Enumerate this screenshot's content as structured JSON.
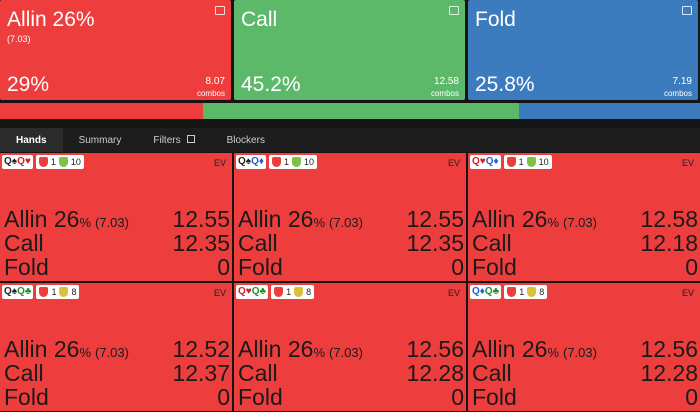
{
  "actions": [
    {
      "name": "Allin 26%",
      "size": "(7.03)",
      "frequency": "29%",
      "combos": 8.07,
      "combos_label": "combos",
      "color": "#ee3d3d"
    },
    {
      "name": "Call",
      "frequency": "45.2%",
      "combos": 12.58,
      "combos_label": "combos",
      "color": "#5cb96a"
    },
    {
      "name": "Fold",
      "frequency": "25.8%",
      "combos": 7.19,
      "combos_label": "combos",
      "color": "#3d7bbf"
    }
  ],
  "tabs": [
    "Hands",
    "Summary",
    "Filters",
    "Blockers"
  ],
  "hands": [
    {
      "cards": [
        "Q♠",
        "Q♥"
      ],
      "blockers": [
        {
          "value": 1,
          "color": "#ee3d3d"
        },
        {
          "value": 10,
          "color": "#7cc243"
        }
      ],
      "ev_label": "EV",
      "rows": [
        {
          "action": "Allin 26",
          "unit": "%",
          "size": "(7.03)",
          "ev": 12.55
        },
        {
          "action": "Call",
          "ev": 12.35
        },
        {
          "action": "Fold",
          "ev": 0
        }
      ]
    },
    {
      "cards": [
        "Q♠",
        "Q♦"
      ],
      "blockers": [
        {
          "value": 1,
          "color": "#ee3d3d"
        },
        {
          "value": 10,
          "color": "#7cc243"
        }
      ],
      "ev_label": "EV",
      "rows": [
        {
          "action": "Allin 26",
          "unit": "%",
          "size": "(7.03)",
          "ev": 12.55
        },
        {
          "action": "Call",
          "ev": 12.35
        },
        {
          "action": "Fold",
          "ev": 0
        }
      ]
    },
    {
      "cards": [
        "Q♥",
        "Q♦"
      ],
      "blockers": [
        {
          "value": 1,
          "color": "#ee3d3d"
        },
        {
          "value": 10,
          "color": "#7cc243"
        }
      ],
      "ev_label": "EV",
      "rows": [
        {
          "action": "Allin 26",
          "unit": "%",
          "size": "(7.03)",
          "ev": 12.58
        },
        {
          "action": "Call",
          "ev": 12.18
        },
        {
          "action": "Fold",
          "ev": 0
        }
      ]
    },
    {
      "cards": [
        "Q♠",
        "Q♣"
      ],
      "blockers": [
        {
          "value": 1,
          "color": "#ee3d3d"
        },
        {
          "value": 8,
          "color": "#d9c23a"
        }
      ],
      "ev_label": "EV",
      "rows": [
        {
          "action": "Allin 26",
          "unit": "%",
          "size": "(7.03)",
          "ev": 12.52
        },
        {
          "action": "Call",
          "ev": 12.37
        },
        {
          "action": "Fold",
          "ev": 0
        }
      ]
    },
    {
      "cards": [
        "Q♥",
        "Q♣"
      ],
      "blockers": [
        {
          "value": 1,
          "color": "#ee3d3d"
        },
        {
          "value": 8,
          "color": "#d9c23a"
        }
      ],
      "ev_label": "EV",
      "rows": [
        {
          "action": "Allin 26",
          "unit": "%",
          "size": "(7.03)",
          "ev": 12.56
        },
        {
          "action": "Call",
          "ev": 12.28
        },
        {
          "action": "Fold",
          "ev": 0
        }
      ]
    },
    {
      "cards": [
        "Q♦",
        "Q♣"
      ],
      "blockers": [
        {
          "value": 1,
          "color": "#ee3d3d"
        },
        {
          "value": 8,
          "color": "#d9c23a"
        }
      ],
      "ev_label": "EV",
      "rows": [
        {
          "action": "Allin 26",
          "unit": "%",
          "size": "(7.03)",
          "ev": 12.56
        },
        {
          "action": "Call",
          "ev": 12.28
        },
        {
          "action": "Fold",
          "ev": 0
        }
      ]
    }
  ]
}
